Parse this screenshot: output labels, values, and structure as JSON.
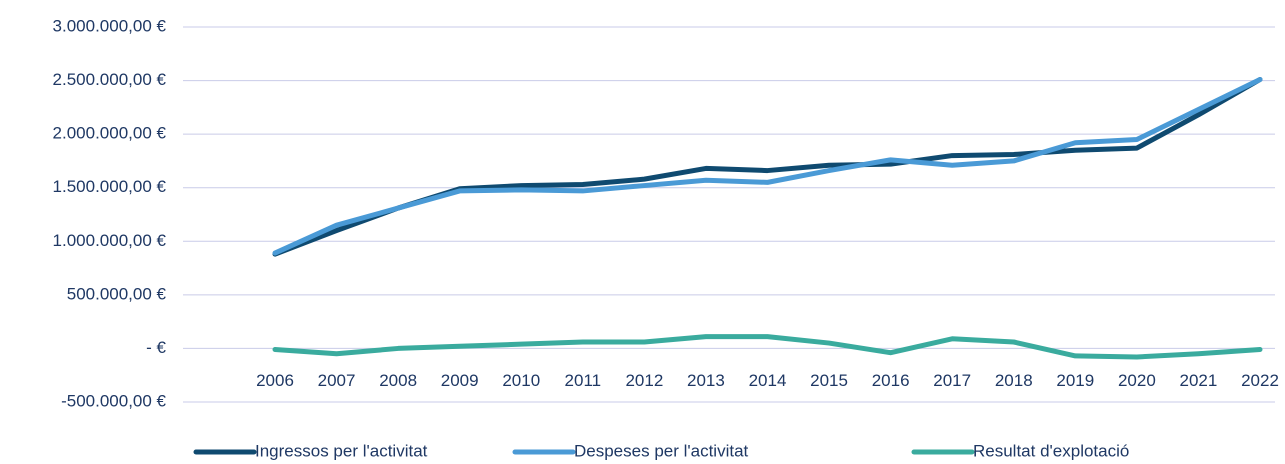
{
  "chart_data": {
    "type": "line",
    "categories": [
      "2006",
      "2007",
      "2008",
      "2009",
      "2010",
      "2011",
      "2012",
      "2013",
      "2014",
      "2015",
      "2016",
      "2017",
      "2018",
      "2019",
      "2020",
      "2021",
      "2022"
    ],
    "series": [
      {
        "name": "Ingressos per l'activitat",
        "color": "#0f4a70",
        "values": [
          880000,
          1100000,
          1310000,
          1490000,
          1520000,
          1530000,
          1580000,
          1680000,
          1660000,
          1710000,
          1720000,
          1800000,
          1810000,
          1850000,
          1870000,
          2180000,
          2510000
        ]
      },
      {
        "name": "Despeses per l'activitat",
        "color": "#4a9ad6",
        "values": [
          890000,
          1150000,
          1310000,
          1470000,
          1480000,
          1470000,
          1520000,
          1570000,
          1550000,
          1660000,
          1760000,
          1710000,
          1750000,
          1920000,
          1950000,
          2230000,
          2510000
        ]
      },
      {
        "name": "Resultat d'explotació",
        "color": "#3aab9e",
        "values": [
          -10000,
          -50000,
          0,
          20000,
          40000,
          60000,
          60000,
          110000,
          110000,
          50000,
          -40000,
          90000,
          60000,
          -70000,
          -80000,
          -50000,
          -10000
        ]
      }
    ],
    "ylim": [
      -500000,
      3000000
    ],
    "yticks": [
      {
        "value": -500000,
        "label": "-500.000,00 €"
      },
      {
        "value": 0,
        "label": "-   €"
      },
      {
        "value": 500000,
        "label": "500.000,00 €"
      },
      {
        "value": 1000000,
        "label": "1.000.000,00 €"
      },
      {
        "value": 1500000,
        "label": "1.500.000,00 €"
      },
      {
        "value": 2000000,
        "label": "2.000.000,00 €"
      },
      {
        "value": 2500000,
        "label": "2.500.000,00 €"
      },
      {
        "value": 3000000,
        "label": "3.000.000,00 €"
      }
    ],
    "grid": true,
    "legend": "bottom"
  }
}
